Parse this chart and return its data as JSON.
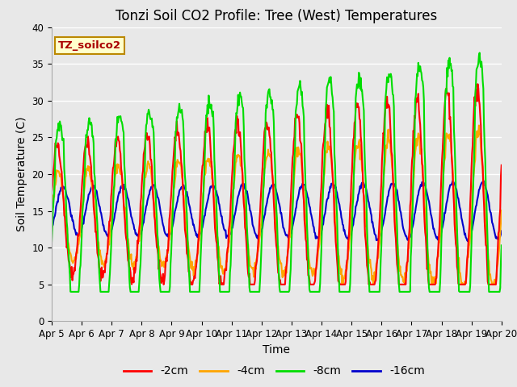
{
  "title": "Tonzi Soil CO2 Profile: Tree (West) Temperatures",
  "xlabel": "Time",
  "ylabel": "Soil Temperature (C)",
  "ylim": [
    0,
    40
  ],
  "x_tick_labels": [
    "Apr 5",
    "Apr 6",
    "Apr 7",
    "Apr 8",
    "Apr 9",
    "Apr 10",
    "Apr 11",
    "Apr 12",
    "Apr 13",
    "Apr 14",
    "Apr 15",
    "Apr 16",
    "Apr 17",
    "Apr 18",
    "Apr 19",
    "Apr 20"
  ],
  "legend_label": "TZ_soilco2",
  "series_labels": [
    "-2cm",
    "-4cm",
    "-8cm",
    "-16cm"
  ],
  "series_colors": [
    "#ff0000",
    "#ffa500",
    "#00dd00",
    "#0000cc"
  ],
  "background_color": "#e8e8e8",
  "plot_bg_color": "#e8e8e8",
  "title_fontsize": 12,
  "axis_fontsize": 10,
  "tick_fontsize": 8.5,
  "legend_fontsize": 10,
  "line_width": 1.5,
  "n_points": 720,
  "day_start": 5,
  "day_end": 20
}
